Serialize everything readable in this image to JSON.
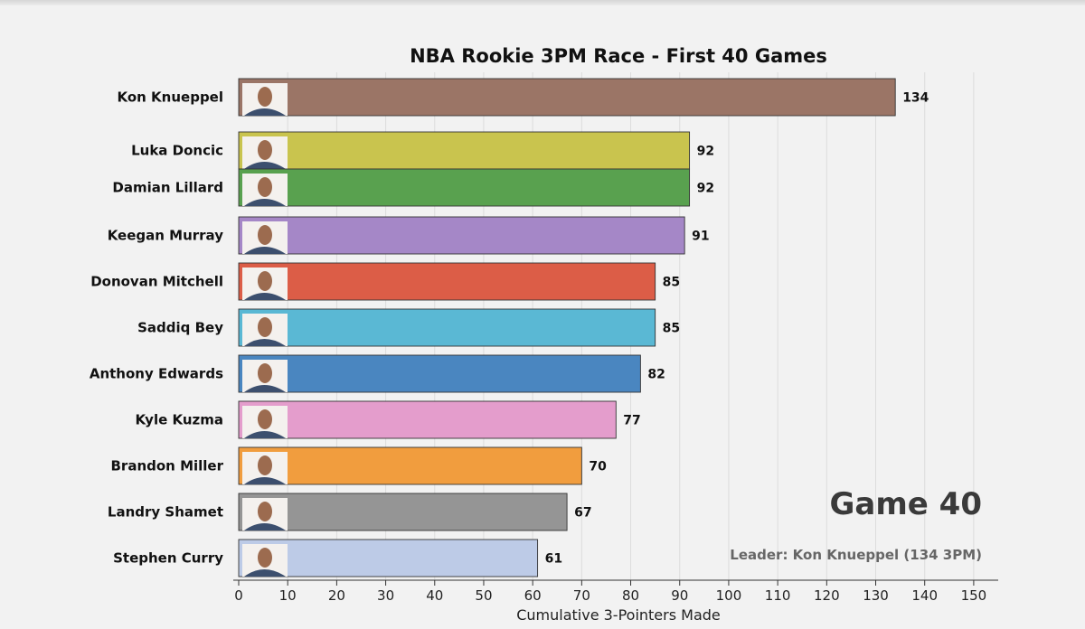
{
  "chart_data": {
    "type": "bar",
    "orientation": "horizontal",
    "title": "NBA Rookie 3PM Race - First 40 Games",
    "xlabel": "Cumulative 3-Pointers Made",
    "ylabel": "",
    "xlim": [
      0,
      155
    ],
    "xticks": [
      0,
      10,
      20,
      30,
      40,
      50,
      60,
      70,
      80,
      90,
      100,
      110,
      120,
      130,
      140,
      150
    ],
    "grid": "vertical",
    "categories": [
      "Kon Knueppel",
      "Luka Doncic",
      "Damian Lillard",
      "Keegan Murray",
      "Donovan Mitchell",
      "Saddiq Bey",
      "Anthony Edwards",
      "Kyle Kuzma",
      "Brandon Miller",
      "Landry Shamet",
      "Stephen Curry"
    ],
    "values": [
      134,
      92,
      92,
      91,
      85,
      85,
      82,
      77,
      70,
      67,
      61
    ],
    "colors": [
      "#9b7566",
      "#c9c44e",
      "#59a14f",
      "#a587c7",
      "#dc5d47",
      "#5ab8d4",
      "#4a86c0",
      "#e49dcc",
      "#f19d3e",
      "#959595",
      "#bdcbe7"
    ],
    "annotations": {
      "game": "Game 40",
      "leader": "Leader: Kon Knueppel (134 3PM)"
    }
  }
}
